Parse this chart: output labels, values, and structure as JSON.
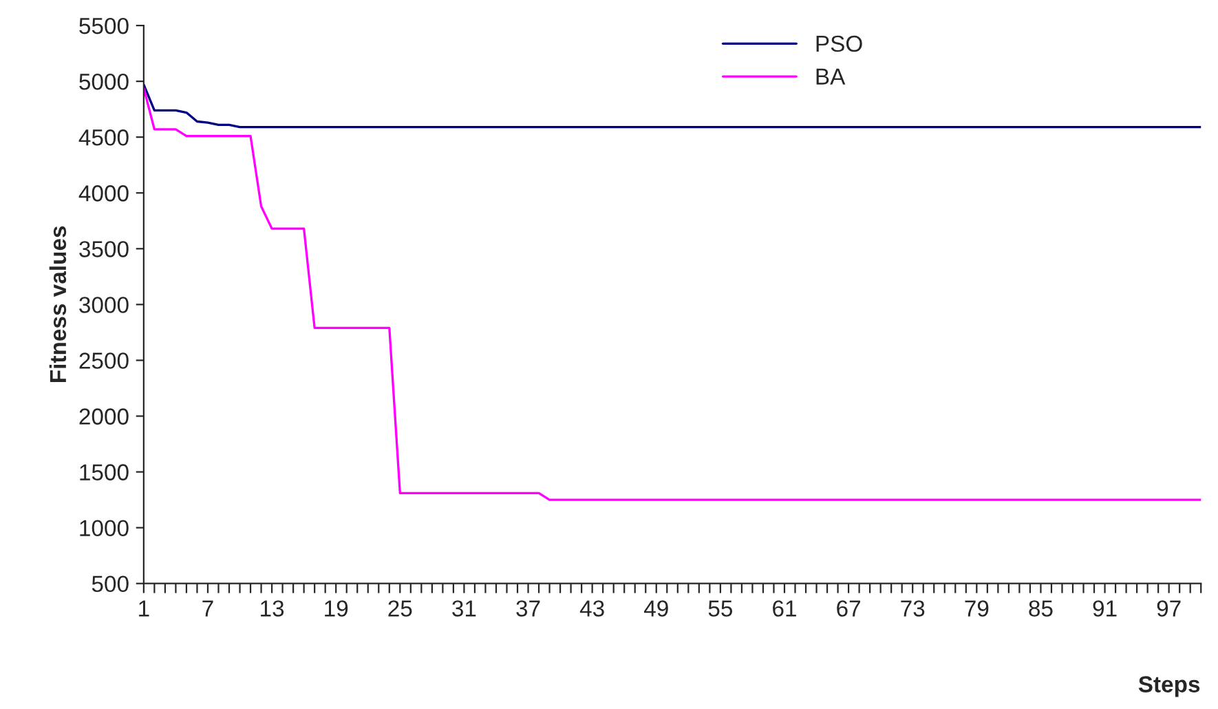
{
  "chart_data": {
    "type": "line",
    "xlabel": "Steps",
    "ylabel": "Fitness values",
    "x": [
      1,
      2,
      3,
      4,
      5,
      6,
      7,
      8,
      9,
      10,
      11,
      12,
      13,
      14,
      15,
      16,
      17,
      18,
      19,
      20,
      21,
      22,
      23,
      24,
      25,
      26,
      27,
      28,
      29,
      30,
      31,
      32,
      33,
      34,
      35,
      36,
      37,
      38,
      39,
      40,
      41,
      42,
      43,
      44,
      45,
      46,
      47,
      48,
      49,
      50,
      51,
      52,
      53,
      54,
      55,
      56,
      57,
      58,
      59,
      60,
      61,
      62,
      63,
      64,
      65,
      66,
      67,
      68,
      69,
      70,
      71,
      72,
      73,
      74,
      75,
      76,
      77,
      78,
      79,
      80,
      81,
      82,
      83,
      84,
      85,
      86,
      87,
      88,
      89,
      90,
      91,
      92,
      93,
      94,
      95,
      96,
      97,
      98,
      99,
      100
    ],
    "series": [
      {
        "name": "PSO",
        "color": "#000080",
        "values": [
          4970,
          4740,
          4740,
          4740,
          4720,
          4640,
          4630,
          4610,
          4610,
          4590,
          4590,
          4590,
          4590,
          4590,
          4590,
          4590,
          4590,
          4590,
          4590,
          4590,
          4590,
          4590,
          4590,
          4590,
          4590,
          4590,
          4590,
          4590,
          4590,
          4590,
          4590,
          4590,
          4590,
          4590,
          4590,
          4590,
          4590,
          4590,
          4590,
          4590,
          4590,
          4590,
          4590,
          4590,
          4590,
          4590,
          4590,
          4590,
          4590,
          4590,
          4590,
          4590,
          4590,
          4590,
          4590,
          4590,
          4590,
          4590,
          4590,
          4590,
          4590,
          4590,
          4590,
          4590,
          4590,
          4590,
          4590,
          4590,
          4590,
          4590,
          4590,
          4590,
          4590,
          4590,
          4590,
          4590,
          4590,
          4590,
          4590,
          4590,
          4590,
          4590,
          4590,
          4590,
          4590,
          4590,
          4590,
          4590,
          4590,
          4590,
          4590,
          4590,
          4590,
          4590,
          4590,
          4590,
          4590,
          4590,
          4590,
          4590
        ]
      },
      {
        "name": "BA",
        "color": "#ff00ff",
        "values": [
          4940,
          4570,
          4570,
          4570,
          4510,
          4510,
          4510,
          4510,
          4510,
          4510,
          4510,
          3880,
          3680,
          3680,
          3680,
          3680,
          2790,
          2790,
          2790,
          2790,
          2790,
          2790,
          2790,
          2790,
          1310,
          1310,
          1310,
          1310,
          1310,
          1310,
          1310,
          1310,
          1310,
          1310,
          1310,
          1310,
          1310,
          1310,
          1250,
          1250,
          1250,
          1250,
          1250,
          1250,
          1250,
          1250,
          1250,
          1250,
          1250,
          1250,
          1250,
          1250,
          1250,
          1250,
          1250,
          1250,
          1250,
          1250,
          1250,
          1250,
          1250,
          1250,
          1250,
          1250,
          1250,
          1250,
          1250,
          1250,
          1250,
          1250,
          1250,
          1250,
          1250,
          1250,
          1250,
          1250,
          1250,
          1250,
          1250,
          1250,
          1250,
          1250,
          1250,
          1250,
          1250,
          1250,
          1250,
          1250,
          1250,
          1250,
          1250,
          1250,
          1250,
          1250,
          1250,
          1250,
          1250,
          1250,
          1250,
          1250
        ]
      }
    ],
    "xlim": [
      1,
      100
    ],
    "xticks": [
      1,
      {
        "value": 2,
        "label": null
      },
      {
        "value": 3,
        "label": null
      },
      {
        "value": 4,
        "label": null
      },
      {
        "value": 5,
        "label": null
      },
      {
        "value": 6,
        "label": null
      },
      7,
      {
        "value": 8,
        "label": null
      },
      {
        "value": 9,
        "label": null
      },
      {
        "value": 10,
        "label": null
      },
      {
        "value": 11,
        "label": null
      },
      {
        "value": 12,
        "label": null
      },
      13,
      {
        "value": 14,
        "label": null
      },
      {
        "value": 15,
        "label": null
      },
      {
        "value": 16,
        "label": null
      },
      {
        "value": 17,
        "label": null
      },
      {
        "value": 18,
        "label": null
      },
      19,
      {
        "value": 20,
        "label": null
      },
      {
        "value": 21,
        "label": null
      },
      {
        "value": 22,
        "label": null
      },
      {
        "value": 23,
        "label": null
      },
      {
        "value": 24,
        "label": null
      },
      25,
      {
        "value": 26,
        "label": null
      },
      {
        "value": 27,
        "label": null
      },
      {
        "value": 28,
        "label": null
      },
      {
        "value": 29,
        "label": null
      },
      {
        "value": 30,
        "label": null
      },
      31,
      {
        "value": 32,
        "label": null
      },
      {
        "value": 33,
        "label": null
      },
      {
        "value": 34,
        "label": null
      },
      {
        "value": 35,
        "label": null
      },
      {
        "value": 36,
        "label": null
      },
      37,
      {
        "value": 38,
        "label": null
      },
      {
        "value": 39,
        "label": null
      },
      {
        "value": 40,
        "label": null
      },
      {
        "value": 41,
        "label": null
      },
      {
        "value": 42,
        "label": null
      },
      43,
      {
        "value": 44,
        "label": null
      },
      {
        "value": 45,
        "label": null
      },
      {
        "value": 46,
        "label": null
      },
      {
        "value": 47,
        "label": null
      },
      {
        "value": 48,
        "label": null
      },
      49,
      {
        "value": 50,
        "label": null
      },
      {
        "value": 51,
        "label": null
      },
      {
        "value": 52,
        "label": null
      },
      {
        "value": 53,
        "label": null
      },
      {
        "value": 54,
        "label": null
      },
      55,
      {
        "value": 56,
        "label": null
      },
      {
        "value": 57,
        "label": null
      },
      {
        "value": 58,
        "label": null
      },
      {
        "value": 59,
        "label": null
      },
      {
        "value": 60,
        "label": null
      },
      61,
      {
        "value": 62,
        "label": null
      },
      {
        "value": 63,
        "label": null
      },
      {
        "value": 64,
        "label": null
      },
      {
        "value": 65,
        "label": null
      },
      {
        "value": 66,
        "label": null
      },
      67,
      {
        "value": 68,
        "label": null
      },
      {
        "value": 69,
        "label": null
      },
      {
        "value": 70,
        "label": null
      },
      {
        "value": 71,
        "label": null
      },
      {
        "value": 72,
        "label": null
      },
      73,
      {
        "value": 74,
        "label": null
      },
      {
        "value": 75,
        "label": null
      },
      {
        "value": 76,
        "label": null
      },
      {
        "value": 77,
        "label": null
      },
      {
        "value": 78,
        "label": null
      },
      79,
      {
        "value": 80,
        "label": null
      },
      {
        "value": 81,
        "label": null
      },
      {
        "value": 82,
        "label": null
      },
      {
        "value": 83,
        "label": null
      },
      {
        "value": 84,
        "label": null
      },
      85,
      {
        "value": 86,
        "label": null
      },
      {
        "value": 87,
        "label": null
      },
      {
        "value": 88,
        "label": null
      },
      {
        "value": 89,
        "label": null
      },
      {
        "value": 90,
        "label": null
      },
      91,
      {
        "value": 92,
        "label": null
      },
      {
        "value": 93,
        "label": null
      },
      {
        "value": 94,
        "label": null
      },
      {
        "value": 95,
        "label": null
      },
      {
        "value": 96,
        "label": null
      },
      97,
      {
        "value": 98,
        "label": null
      },
      {
        "value": 99,
        "label": null
      },
      {
        "value": 100,
        "label": null
      }
    ],
    "ylim": [
      500,
      5500
    ],
    "yticks": [
      500,
      1000,
      1500,
      2000,
      2500,
      3000,
      3500,
      4000,
      4500,
      5000,
      5500
    ],
    "grid": false,
    "legend": "top right",
    "marker": "none",
    "line_style": "solid"
  }
}
